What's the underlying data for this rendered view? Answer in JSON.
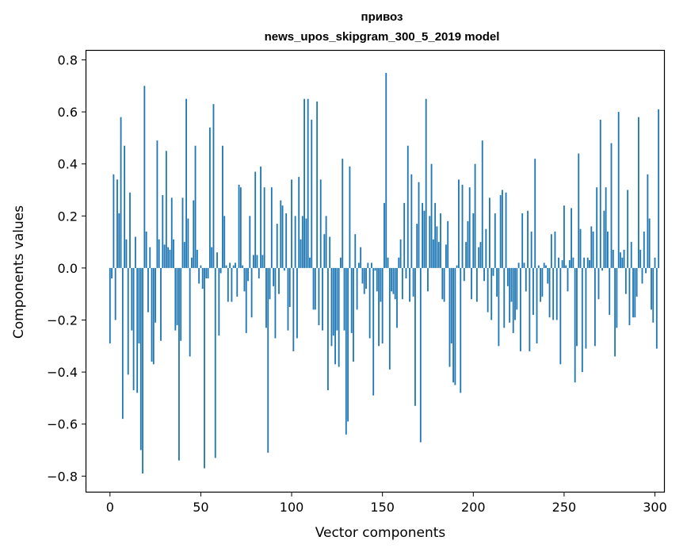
{
  "chart_data": {
    "type": "bar",
    "title": "привоз",
    "subtitle": "news_upos_skipgram_300_5_2019 model",
    "xlabel": "Vector components",
    "ylabel": "Components values",
    "xlim": [
      -13,
      305
    ],
    "ylim": [
      -0.86,
      0.835
    ],
    "xticks": [
      0,
      50,
      100,
      150,
      200,
      250,
      300
    ],
    "yticks": [
      -0.8,
      -0.6,
      -0.4,
      -0.2,
      0.0,
      0.2,
      0.4,
      0.6,
      0.8
    ],
    "ytick_labels": [
      "−0.8",
      "−0.6",
      "−0.4",
      "−0.2",
      "0.0",
      "0.2",
      "0.4",
      "0.6",
      "0.8"
    ],
    "bar_color": "#1f77b4",
    "values": [
      -0.29,
      -0.04,
      0.36,
      -0.2,
      0.34,
      0.21,
      0.58,
      -0.58,
      0.47,
      0.11,
      -0.41,
      0.29,
      -0.24,
      -0.47,
      0.12,
      -0.48,
      -0.29,
      -0.7,
      -0.79,
      0.7,
      0.14,
      -0.17,
      0.08,
      -0.36,
      -0.37,
      -0.21,
      0.49,
      0.11,
      -0.28,
      0.28,
      0.09,
      0.45,
      0.08,
      0.07,
      0.27,
      0.11,
      -0.24,
      -0.22,
      -0.74,
      -0.28,
      0.27,
      0.1,
      0.65,
      0.19,
      -0.34,
      0.04,
      0.26,
      0.47,
      0.07,
      -0.06,
      0.01,
      -0.08,
      -0.77,
      -0.04,
      -0.04,
      0.54,
      0.08,
      0.63,
      -0.73,
      0.06,
      -0.26,
      -0.02,
      0.47,
      0.2,
      0.01,
      -0.13,
      0.02,
      -0.13,
      0.01,
      0.02,
      -0.11,
      0.32,
      0.31,
      0.01,
      -0.09,
      -0.25,
      -0.05,
      0.2,
      -0.19,
      0.05,
      0.37,
      0.05,
      -0.04,
      0.39,
      0.05,
      0.31,
      -0.23,
      -0.71,
      -0.12,
      0.31,
      -0.07,
      -0.27,
      0.17,
      -0.1,
      0.26,
      0.24,
      -0.01,
      0.21,
      -0.24,
      -0.15,
      0.34,
      -0.32,
      0.2,
      -0.27,
      0.35,
      0.11,
      0.2,
      0.65,
      0.19,
      0.65,
      0.04,
      0.57,
      -0.16,
      -0.16,
      0.64,
      -0.22,
      0.34,
      -0.24,
      0.13,
      0.2,
      -0.47,
      0.12,
      -0.3,
      -0.26,
      -0.37,
      -0.24,
      -0.38,
      0.04,
      0.42,
      -0.24,
      -0.64,
      -0.59,
      0.39,
      -0.25,
      -0.36,
      0.13,
      -0.16,
      0.02,
      0.08,
      -0.06,
      -0.1,
      -0.08,
      0.02,
      -0.27,
      0.02,
      -0.49,
      -0.01,
      -0.09,
      -0.3,
      -0.13,
      -0.29,
      0.25,
      0.75,
      0.04,
      -0.39,
      -0.09,
      -0.1,
      -0.12,
      -0.23,
      0.04,
      0.11,
      -0.12,
      0.25,
      -0.04,
      0.47,
      -0.13,
      0.36,
      -0.11,
      -0.53,
      0.17,
      0.33,
      -0.67,
      0.25,
      0.22,
      0.65,
      -0.09,
      0.2,
      0.4,
      0.11,
      0.25,
      0.16,
      0.1,
      0.21,
      -0.12,
      -0.13,
      0.09,
      0.18,
      -0.38,
      -0.29,
      -0.44,
      -0.45,
      0.01,
      0.34,
      -0.48,
      0.32,
      -0.05,
      0.1,
      0.18,
      0.31,
      -0.12,
      0.21,
      0.4,
      -0.13,
      0.08,
      0.1,
      0.49,
      -0.05,
      0.15,
      -0.17,
      0.27,
      -0.2,
      -0.03,
      0.21,
      -0.11,
      -0.3,
      0.28,
      0.3,
      -0.23,
      0.29,
      -0.07,
      -0.21,
      -0.13,
      -0.25,
      -0.2,
      -0.16,
      0.02,
      -0.32,
      0.21,
      0.02,
      -0.09,
      0.22,
      -0.32,
      0.14,
      -0.18,
      0.42,
      -0.29,
      0.01,
      -0.13,
      -0.11,
      0.02,
      0.01,
      -0.06,
      -0.19,
      0.13,
      -0.2,
      0.14,
      -0.2,
      0.04,
      -0.37,
      0.03,
      0.24,
      0.01,
      -0.09,
      0.03,
      0.23,
      0.04,
      -0.44,
      -0.3,
      0.44,
      0.15,
      -0.4,
      0.04,
      -0.31,
      0.04,
      0.03,
      0.16,
      0.14,
      -0.3,
      0.31,
      -0.12,
      0.57,
      -0.01,
      0.22,
      0.31,
      0.14,
      -0.18,
      0.48,
      0.07,
      -0.34,
      -0.23,
      0.6,
      0.06,
      0.04,
      0.07,
      -0.1,
      0.3,
      -0.22,
      0.1,
      -0.19,
      -0.19,
      -0.11,
      0.58,
      0.07,
      -0.06,
      0.14,
      -0.02,
      0.36,
      0.19,
      -0.16,
      -0.21,
      0.04,
      -0.31,
      0.61
    ]
  }
}
